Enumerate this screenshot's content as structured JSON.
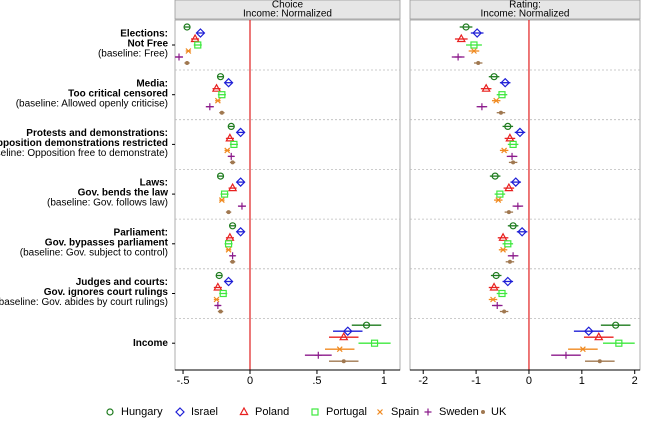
{
  "chart_data": [
    {
      "type": "dotwhisker",
      "title": "Choice",
      "subtitle": "Income: Normalized",
      "categories": [
        [
          "Elections:",
          "Not Free",
          "(baseline: Free)"
        ],
        [
          "Media:",
          "Too critical censored",
          "(baseline: Allowed openly criticise)"
        ],
        [
          "Protests and demonstrations:",
          "Opposition demonstrations restricted",
          "(baseline: Opposition free to demonstrate)"
        ],
        [
          "Laws:",
          "Gov. bends the law",
          "(baseline: Gov. follows law)"
        ],
        [
          "Parliament:",
          "Gov. bypasses parliament",
          "(baseline: Gov. subject to control)"
        ],
        [
          "Judges and courts:",
          "Gov. ignores court rulings",
          "(baseline: Gov. abides by court rulings)"
        ],
        [
          "Income"
        ]
      ],
      "xlim": [
        -0.56,
        1.12
      ],
      "xticks": [
        {
          "value": -0.5,
          "label": "-.5"
        },
        0,
        {
          "value": 0.5,
          "label": ".5"
        },
        1
      ],
      "refline": 0,
      "series": [
        {
          "name": "Hungary",
          "color": "#1e7b1e",
          "marker": "circle",
          "values": [
            -0.47,
            -0.22,
            -0.14,
            -0.22,
            -0.13,
            -0.23,
            0.87
          ],
          "errors": [
            0.02,
            0.02,
            0.02,
            0.02,
            0.02,
            0.02,
            0.11
          ]
        },
        {
          "name": "Israel",
          "color": "#1f1fd6",
          "marker": "diamond",
          "values": [
            -0.37,
            -0.16,
            -0.07,
            -0.07,
            -0.07,
            -0.16,
            0.73
          ],
          "errors": [
            0.03,
            0.03,
            0.03,
            0.03,
            0.03,
            0.03,
            0.11
          ]
        },
        {
          "name": "Poland",
          "color": "#e8201f",
          "marker": "triangle",
          "values": [
            -0.41,
            -0.25,
            -0.15,
            -0.13,
            -0.15,
            -0.24,
            0.7
          ],
          "errors": [
            0.03,
            0.03,
            0.03,
            0.03,
            0.03,
            0.03,
            0.11
          ]
        },
        {
          "name": "Portugal",
          "color": "#3ee83e",
          "marker": "square",
          "values": [
            -0.39,
            -0.21,
            -0.12,
            -0.19,
            -0.16,
            -0.2,
            0.93
          ],
          "errors": [
            0.03,
            0.03,
            0.03,
            0.03,
            0.03,
            0.03,
            0.12
          ]
        },
        {
          "name": "Spain",
          "color": "#f08a20",
          "marker": "x",
          "values": [
            -0.46,
            -0.24,
            -0.17,
            -0.21,
            -0.16,
            -0.25,
            0.67
          ],
          "errors": [
            0.02,
            0.02,
            0.02,
            0.02,
            0.02,
            0.02,
            0.11
          ]
        },
        {
          "name": "Sweden",
          "color": "#8b1a8b",
          "marker": "plus",
          "values": [
            -0.53,
            -0.3,
            -0.14,
            -0.06,
            -0.13,
            -0.24,
            0.51
          ],
          "errors": [
            0.03,
            0.03,
            0.02,
            0.03,
            0.02,
            0.02,
            0.1
          ]
        },
        {
          "name": "UK",
          "color": "#a07850",
          "marker": "dot",
          "values": [
            -0.47,
            -0.21,
            -0.13,
            -0.16,
            -0.13,
            -0.22,
            0.7
          ],
          "errors": [
            0.02,
            0.02,
            0.02,
            0.02,
            0.02,
            0.02,
            0.11
          ]
        }
      ]
    },
    {
      "type": "dotwhisker",
      "title": "Rating:",
      "subtitle": "Income: Normalized",
      "xlim": [
        -2.25,
        2.1
      ],
      "xticks": [
        -2,
        -1,
        0,
        1,
        2
      ],
      "refline": 0,
      "series": [
        {
          "values": [
            -1.19,
            -0.66,
            -0.4,
            -0.64,
            -0.3,
            -0.62,
            1.64
          ],
          "errors": [
            0.12,
            0.1,
            0.1,
            0.1,
            0.1,
            0.1,
            0.28
          ]
        },
        {
          "values": [
            -0.98,
            -0.45,
            -0.17,
            -0.25,
            -0.13,
            -0.4,
            1.13
          ],
          "errors": [
            0.12,
            0.1,
            0.1,
            0.1,
            0.1,
            0.1,
            0.28
          ]
        },
        {
          "values": [
            -1.28,
            -0.81,
            -0.36,
            -0.38,
            -0.49,
            -0.66,
            1.32
          ],
          "errors": [
            0.12,
            0.1,
            0.1,
            0.1,
            0.1,
            0.1,
            0.28
          ]
        },
        {
          "values": [
            -1.04,
            -0.51,
            -0.3,
            -0.55,
            -0.4,
            -0.51,
            1.7
          ],
          "errors": [
            0.15,
            0.1,
            0.1,
            0.1,
            0.1,
            0.1,
            0.3
          ]
        },
        {
          "values": [
            -1.04,
            -0.62,
            -0.47,
            -0.58,
            -0.49,
            -0.68,
            1.02
          ],
          "errors": [
            0.1,
            0.08,
            0.08,
            0.08,
            0.08,
            0.08,
            0.28
          ]
        },
        {
          "values": [
            -1.34,
            -0.89,
            -0.32,
            -0.21,
            -0.3,
            -0.6,
            0.7
          ],
          "errors": [
            0.12,
            0.1,
            0.1,
            0.1,
            0.1,
            0.1,
            0.28
          ]
        },
        {
          "values": [
            -0.96,
            -0.53,
            -0.3,
            -0.38,
            -0.36,
            -0.47,
            1.34
          ],
          "errors": [
            0.08,
            0.08,
            0.08,
            0.08,
            0.08,
            0.08,
            0.28
          ]
        }
      ]
    }
  ]
}
